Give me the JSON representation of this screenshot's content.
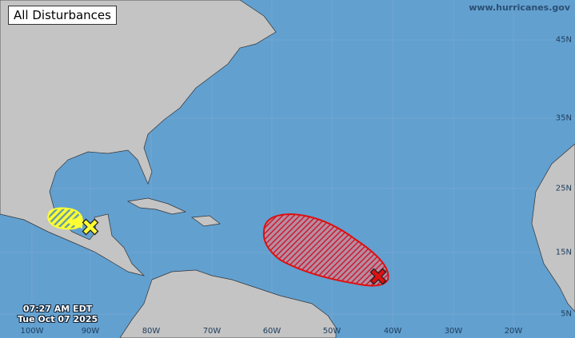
{
  "title": "All Disturbances",
  "source": "www.hurricanes.gov",
  "timestamp": {
    "time": "07:27 AM EDT",
    "date": "Tue Oct 07 2025"
  },
  "longitude_labels": [
    "100W",
    "90W",
    "80W",
    "70W",
    "60W",
    "50W",
    "40W",
    "30W",
    "20W"
  ],
  "latitude_labels": [
    "45N",
    "35N",
    "25N",
    "15N",
    "5N"
  ],
  "colors": {
    "ocean": "#62a0d0",
    "land": "#c4c4c4",
    "low_chance": "#ffff33",
    "high_chance": "#dd1111"
  },
  "disturbances": [
    {
      "name": "gulf-disturbance",
      "chance": "low",
      "color": "#ffff33",
      "marker": "x-icon"
    },
    {
      "name": "central-atlantic-disturbance",
      "chance": "high",
      "color": "#dd1111",
      "marker": "x-icon"
    }
  ]
}
